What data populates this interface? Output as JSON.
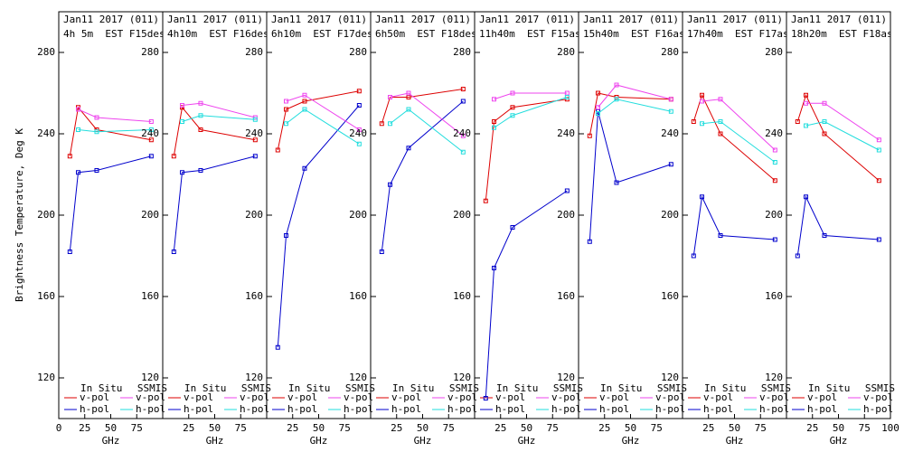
{
  "chart_data": [
    {
      "type": "line",
      "title": "Jan11 2017 (011)",
      "subtitle": "4h 5m  EST F15des",
      "xlabel": "GHz",
      "ylabel": "Brightness Temperature, Deg K",
      "xlim": [
        0,
        100
      ],
      "ylim": [
        100,
        300
      ],
      "xticks": [
        0,
        25,
        50,
        75
      ],
      "yticks": [
        120,
        160,
        200,
        240,
        280
      ],
      "series_groups": [
        {
          "name": "In Situ",
          "x": [
            10.7,
            18.7,
            36.5,
            89
          ],
          "series": [
            {
              "name": "v-pol",
              "color": "#dd0000",
              "values": [
                229,
                253,
                242,
                237
              ]
            },
            {
              "name": "h-pol",
              "color": "#0000cc",
              "values": [
                182,
                221,
                222,
                229
              ]
            }
          ]
        },
        {
          "name": "SSMIS",
          "x": [
            18.7,
            36.5,
            89
          ],
          "series": [
            {
              "name": "v-pol",
              "color": "#ee44ee",
              "values": [
                252,
                248,
                246
              ]
            },
            {
              "name": "h-pol",
              "color": "#22dddd",
              "values": [
                242,
                241,
                242
              ]
            }
          ]
        }
      ]
    },
    {
      "type": "line",
      "title": "Jan11 2017 (011)",
      "subtitle": "4h10m  EST F16des",
      "xlabel": "GHz",
      "xlim": [
        0,
        100
      ],
      "ylim": [
        100,
        300
      ],
      "xticks": [
        25,
        50,
        75
      ],
      "yticks": [
        120,
        160,
        200,
        240,
        280
      ],
      "series_groups": [
        {
          "name": "In Situ",
          "x": [
            10.7,
            18.7,
            36.5,
            89
          ],
          "series": [
            {
              "name": "v-pol",
              "color": "#dd0000",
              "values": [
                229,
                253,
                242,
                237
              ]
            },
            {
              "name": "h-pol",
              "color": "#0000cc",
              "values": [
                182,
                221,
                222,
                229
              ]
            }
          ]
        },
        {
          "name": "SSMIS",
          "x": [
            18.7,
            36.5,
            89
          ],
          "series": [
            {
              "name": "v-pol",
              "color": "#ee44ee",
              "values": [
                254,
                255,
                248
              ]
            },
            {
              "name": "h-pol",
              "color": "#22dddd",
              "values": [
                246,
                249,
                247
              ]
            }
          ]
        }
      ]
    },
    {
      "type": "line",
      "title": "Jan11 2017 (011)",
      "subtitle": "6h10m  EST F17des",
      "xlabel": "GHz",
      "xlim": [
        0,
        100
      ],
      "ylim": [
        100,
        300
      ],
      "xticks": [
        25,
        50,
        75
      ],
      "yticks": [
        120,
        160,
        200,
        240,
        280
      ],
      "series_groups": [
        {
          "name": "In Situ",
          "x": [
            10.7,
            18.7,
            36.5,
            89
          ],
          "series": [
            {
              "name": "v-pol",
              "color": "#dd0000",
              "values": [
                232,
                252,
                256,
                261
              ]
            },
            {
              "name": "h-pol",
              "color": "#0000cc",
              "values": [
                135,
                190,
                223,
                254
              ]
            }
          ]
        },
        {
          "name": "SSMIS",
          "x": [
            18.7,
            36.5,
            89
          ],
          "series": [
            {
              "name": "v-pol",
              "color": "#ee44ee",
              "values": [
                256,
                259,
                242
              ]
            },
            {
              "name": "h-pol",
              "color": "#22dddd",
              "values": [
                245,
                252,
                235
              ]
            }
          ]
        }
      ]
    },
    {
      "type": "line",
      "title": "Jan11 2017 (011)",
      "subtitle": "6h50m  EST F18des",
      "xlabel": "GHz",
      "xlim": [
        0,
        100
      ],
      "ylim": [
        100,
        300
      ],
      "xticks": [
        25,
        50,
        75
      ],
      "yticks": [
        120,
        160,
        200,
        240,
        280
      ],
      "series_groups": [
        {
          "name": "In Situ",
          "x": [
            10.7,
            18.7,
            36.5,
            89
          ],
          "series": [
            {
              "name": "v-pol",
              "color": "#dd0000",
              "values": [
                245,
                258,
                258,
                262
              ]
            },
            {
              "name": "h-pol",
              "color": "#0000cc",
              "values": [
                182,
                215,
                233,
                256
              ]
            }
          ]
        },
        {
          "name": "SSMIS",
          "x": [
            18.7,
            36.5,
            89
          ],
          "series": [
            {
              "name": "v-pol",
              "color": "#ee44ee",
              "values": [
                258,
                260,
                239
              ]
            },
            {
              "name": "h-pol",
              "color": "#22dddd",
              "values": [
                245,
                252,
                231
              ]
            }
          ]
        }
      ]
    },
    {
      "type": "line",
      "title": "Jan11 2017 (011)",
      "subtitle": "11h40m  EST F15asc",
      "xlabel": "GHz",
      "xlim": [
        0,
        100
      ],
      "ylim": [
        100,
        300
      ],
      "xticks": [
        25,
        50,
        75
      ],
      "yticks": [
        120,
        160,
        200,
        240,
        280
      ],
      "series_groups": [
        {
          "name": "In Situ",
          "x": [
            10.7,
            18.7,
            36.5,
            89
          ],
          "series": [
            {
              "name": "v-pol",
              "color": "#dd0000",
              "values": [
                207,
                246,
                253,
                257
              ]
            },
            {
              "name": "h-pol",
              "color": "#0000cc",
              "values": [
                110,
                174,
                194,
                212
              ]
            }
          ]
        },
        {
          "name": "SSMIS",
          "x": [
            18.7,
            36.5,
            89
          ],
          "series": [
            {
              "name": "v-pol",
              "color": "#ee44ee",
              "values": [
                257,
                260,
                260
              ]
            },
            {
              "name": "h-pol",
              "color": "#22dddd",
              "values": [
                243,
                249,
                258
              ]
            }
          ]
        }
      ]
    },
    {
      "type": "line",
      "title": "Jan11 2017 (011)",
      "subtitle": "15h40m  EST F16asc",
      "xlabel": "GHz",
      "xlim": [
        0,
        100
      ],
      "ylim": [
        100,
        300
      ],
      "xticks": [
        25,
        50,
        75
      ],
      "yticks": [
        120,
        160,
        200,
        240,
        280
      ],
      "series_groups": [
        {
          "name": "In Situ",
          "x": [
            10.7,
            18.7,
            36.5,
            89
          ],
          "series": [
            {
              "name": "v-pol",
              "color": "#dd0000",
              "values": [
                239,
                260,
                258,
                257
              ]
            },
            {
              "name": "h-pol",
              "color": "#0000cc",
              "values": [
                187,
                251,
                216,
                225
              ]
            }
          ]
        },
        {
          "name": "SSMIS",
          "x": [
            18.7,
            36.5,
            89
          ],
          "series": [
            {
              "name": "v-pol",
              "color": "#ee44ee",
              "values": [
                253,
                264,
                257
              ]
            },
            {
              "name": "h-pol",
              "color": "#22dddd",
              "values": [
                250,
                257,
                251
              ]
            }
          ]
        }
      ]
    },
    {
      "type": "line",
      "title": "Jan11 2017 (011)",
      "subtitle": "17h40m  EST F17asc",
      "xlabel": "GHz",
      "xlim": [
        0,
        100
      ],
      "ylim": [
        100,
        300
      ],
      "xticks": [
        25,
        50,
        75
      ],
      "yticks": [
        120,
        160,
        200,
        240,
        280
      ],
      "series_groups": [
        {
          "name": "In Situ",
          "x": [
            10.7,
            18.7,
            36.5,
            89
          ],
          "series": [
            {
              "name": "v-pol",
              "color": "#dd0000",
              "values": [
                246,
                259,
                240,
                217
              ]
            },
            {
              "name": "h-pol",
              "color": "#0000cc",
              "values": [
                180,
                209,
                190,
                188
              ]
            }
          ]
        },
        {
          "name": "SSMIS",
          "x": [
            18.7,
            36.5,
            89
          ],
          "series": [
            {
              "name": "v-pol",
              "color": "#ee44ee",
              "values": [
                256,
                257,
                232
              ]
            },
            {
              "name": "h-pol",
              "color": "#22dddd",
              "values": [
                245,
                246,
                226
              ]
            }
          ]
        }
      ]
    },
    {
      "type": "line",
      "title": "Jan11 2017 (011)",
      "subtitle": "18h20m  EST F18asc",
      "xlabel": "GHz",
      "xlim": [
        0,
        100
      ],
      "ylim": [
        100,
        300
      ],
      "xticks": [
        25,
        50,
        75,
        100
      ],
      "yticks": [
        120,
        160,
        200,
        240,
        280
      ],
      "series_groups": [
        {
          "name": "In Situ",
          "x": [
            10.7,
            18.7,
            36.5,
            89
          ],
          "series": [
            {
              "name": "v-pol",
              "color": "#dd0000",
              "values": [
                246,
                259,
                240,
                217
              ]
            },
            {
              "name": "h-pol",
              "color": "#0000cc",
              "values": [
                180,
                209,
                190,
                188
              ]
            }
          ]
        },
        {
          "name": "SSMIS",
          "x": [
            18.7,
            36.5,
            89
          ],
          "series": [
            {
              "name": "v-pol",
              "color": "#ee44ee",
              "values": [
                255,
                255,
                237
              ]
            },
            {
              "name": "h-pol",
              "color": "#22dddd",
              "values": [
                244,
                246,
                232
              ]
            }
          ]
        }
      ]
    }
  ]
}
